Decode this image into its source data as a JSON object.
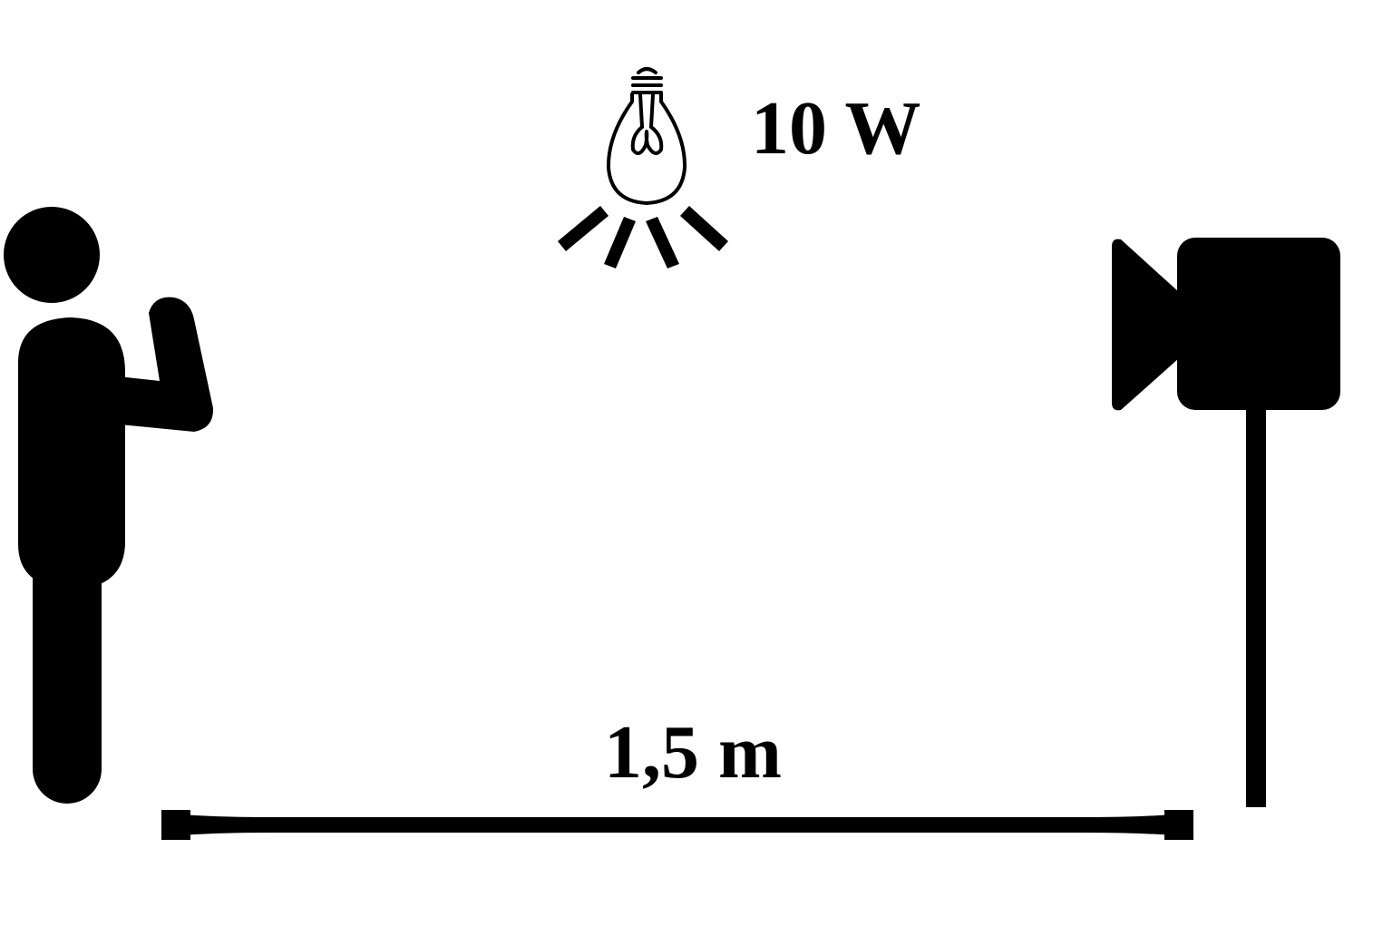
{
  "lamp": {
    "power": "10 W",
    "icon": "light-bulb-icon"
  },
  "distance": {
    "label": "1,5 m",
    "icon": "dimension-line"
  },
  "person": {
    "icon": "person-waving-icon"
  },
  "camera": {
    "icon": "video-camera-on-tripod-icon"
  },
  "colors": {
    "ink": "#000000",
    "background": "#ffffff"
  }
}
